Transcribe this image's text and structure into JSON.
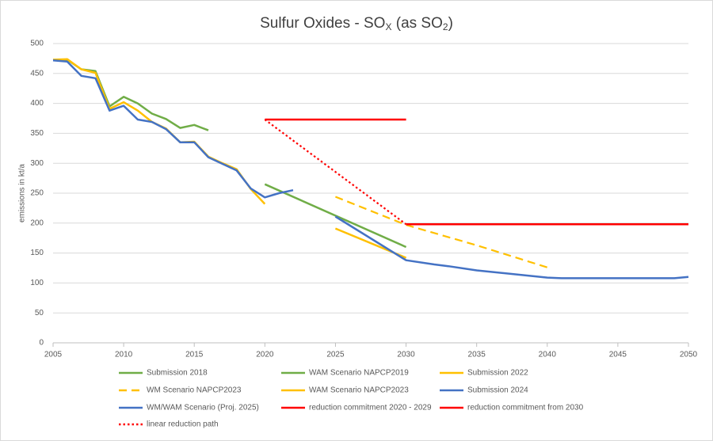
{
  "chart_data": {
    "type": "line",
    "title": [
      "Sulfur Oxides - SO",
      "X",
      " (as SO",
      "2",
      ")"
    ],
    "y_label": "emissions in kt/a",
    "xlim": [
      2005,
      2050
    ],
    "xticks": [
      2005,
      2010,
      2015,
      2020,
      2025,
      2030,
      2035,
      2040,
      2045,
      2050
    ],
    "ylim": [
      0,
      500
    ],
    "yticks": [
      0,
      50,
      100,
      150,
      200,
      250,
      300,
      350,
      400,
      450,
      500
    ],
    "grid": true,
    "legend": "bottom",
    "series": [
      {
        "name": "Submission 2018",
        "color": "#70ad47",
        "dash": "solid",
        "x": [
          2005,
          2006,
          2007,
          2008,
          2009,
          2010,
          2011,
          2012,
          2013,
          2014,
          2015,
          2016
        ],
        "values": [
          472,
          473,
          457,
          454,
          395,
          411,
          400,
          383,
          374,
          359,
          364,
          355
        ]
      },
      {
        "name": "WAM Scenario NAPCP2019",
        "color": "#70ad47",
        "dash": "solid",
        "x": [
          2020,
          2030
        ],
        "values": [
          265,
          160
        ]
      },
      {
        "name": "Submission 2022",
        "color": "#ffc000",
        "dash": "solid",
        "x": [
          2005,
          2006,
          2007,
          2008,
          2009,
          2010,
          2011,
          2012,
          2013,
          2014,
          2015,
          2016,
          2017,
          2018,
          2019,
          2020
        ],
        "values": [
          473,
          474,
          457,
          451,
          391,
          402,
          388,
          369,
          358,
          335,
          336,
          311,
          300,
          290,
          257,
          232
        ]
      },
      {
        "name": "WM Scenario NAPCP2023",
        "color": "#ffc000",
        "dash": "dashed",
        "x": [
          2025,
          2030,
          2035,
          2040
        ],
        "values": [
          244,
          197,
          163,
          126
        ]
      },
      {
        "name": "WAM Scenario NAPCP2023",
        "color": "#ffc000",
        "dash": "solid",
        "x": [
          2025,
          2030
        ],
        "values": [
          191,
          142
        ]
      },
      {
        "name": "Submission 2024",
        "color": "#4472c4",
        "dash": "solid",
        "x": [
          2005,
          2006,
          2007,
          2008,
          2009,
          2010,
          2011,
          2012,
          2013,
          2014,
          2015,
          2016,
          2017,
          2018,
          2019,
          2020,
          2021,
          2022
        ],
        "values": [
          472,
          470,
          446,
          442,
          388,
          396,
          373,
          369,
          357,
          335,
          335,
          310,
          299,
          288,
          258,
          243,
          250,
          255
        ]
      },
      {
        "name": "WM/WAM Scenario (Proj. 2025)",
        "color": "#4472c4",
        "dash": "solid",
        "x": [
          2025,
          2030,
          2032,
          2033,
          2035,
          2040,
          2041,
          2045,
          2049,
          2050
        ],
        "values": [
          211,
          138,
          131,
          128,
          121,
          109,
          108,
          108,
          108,
          110
        ]
      },
      {
        "name": "reduction commitment 2020 - 2029",
        "color": "#ff0000",
        "dash": "solid",
        "x": [
          2020,
          2030
        ],
        "values": [
          373,
          373
        ]
      },
      {
        "name": "reduction commitment from 2030",
        "color": "#ff0000",
        "dash": "solid",
        "x": [
          2030,
          2050
        ],
        "values": [
          198,
          198
        ]
      },
      {
        "name": "linear reduction path",
        "color": "#ff0000",
        "dash": "dotted",
        "x": [
          2020,
          2030
        ],
        "values": [
          373,
          198
        ]
      }
    ]
  }
}
